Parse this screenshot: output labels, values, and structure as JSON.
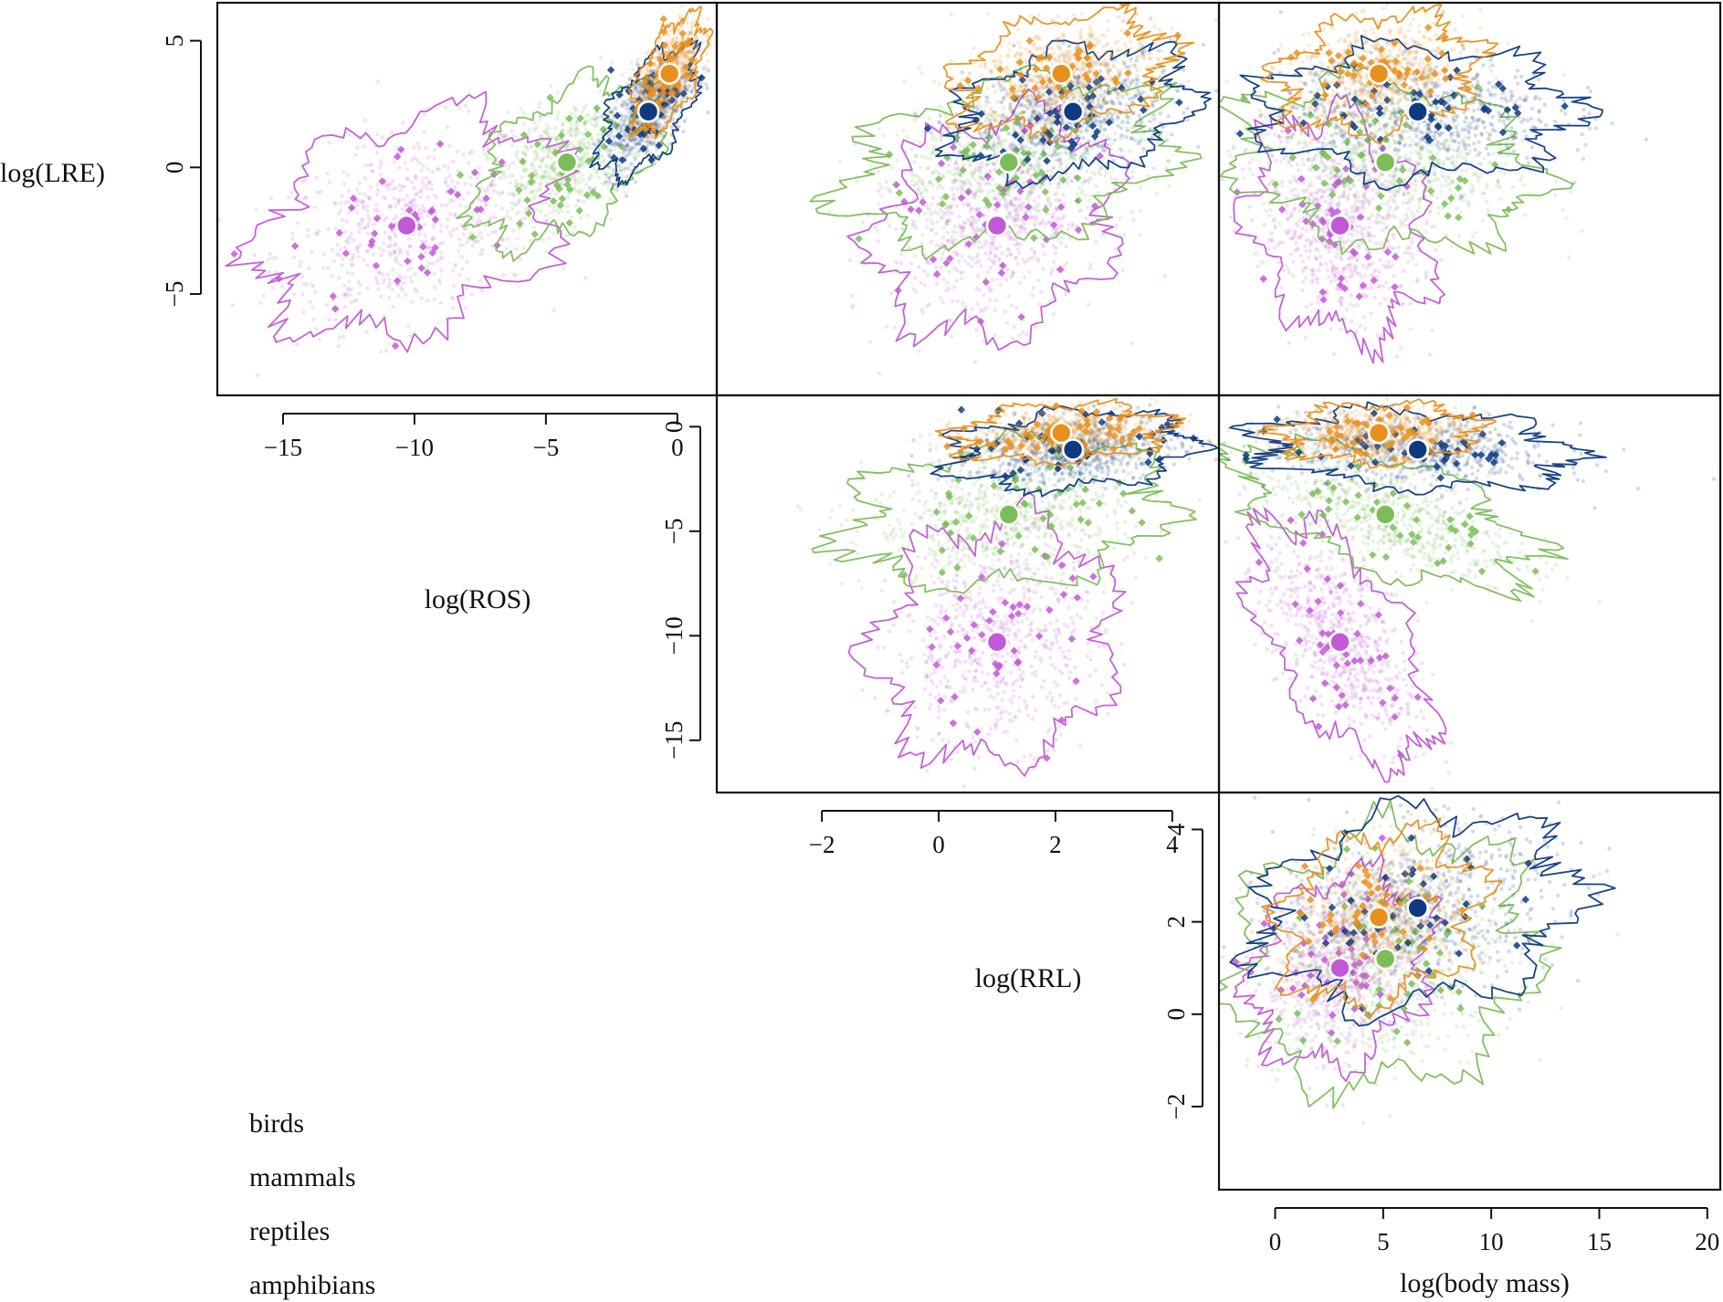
{
  "colors": {
    "birds": "#e8901e",
    "mammals": "#0d3a80",
    "reptiles": "#7cbd5a",
    "amphibians": "#c158d6"
  },
  "legend": [
    {
      "key": "birds",
      "label": "birds"
    },
    {
      "key": "mammals",
      "label": "mammals"
    },
    {
      "key": "reptiles",
      "label": "reptiles"
    },
    {
      "key": "amphibians",
      "label": "amphibians"
    }
  ],
  "axes": {
    "lre": {
      "title": "log(LRE)",
      "ticks": [
        -5,
        0,
        5
      ],
      "tick_labels": [
        "−5",
        "0",
        "5"
      ]
    },
    "ros": {
      "title": "log(ROS)",
      "ticks": [
        -15,
        -10,
        -5,
        0
      ],
      "tick_labels": [
        "−15",
        "−10",
        "−5",
        "0"
      ]
    },
    "rrl": {
      "title": "log(RRL)",
      "ticks": [
        -2,
        0,
        2,
        4
      ],
      "tick_labels": [
        "−2",
        "0",
        "2",
        "4"
      ]
    },
    "mass": {
      "title": "log(body mass)",
      "ticks": [
        0,
        5,
        10,
        15,
        20
      ],
      "tick_labels": [
        "0",
        "5",
        "10",
        "15",
        "20"
      ]
    }
  },
  "chart_data": {
    "type": "scatter",
    "layout": "pairs-matrix",
    "panels": [
      {
        "id": "p11",
        "x": "ros",
        "y": "lre",
        "xlim": [
          -17.5,
          1.5
        ],
        "ylim": [
          -9,
          6.5
        ]
      },
      {
        "id": "p12",
        "x": "rrl",
        "y": "lre",
        "xlim": [
          -3.8,
          4.8
        ],
        "ylim": [
          -9,
          6.5
        ]
      },
      {
        "id": "p13",
        "x": "mass",
        "y": "lre",
        "xlim": [
          -2.6,
          20.6
        ],
        "ylim": [
          -9,
          6.5
        ]
      },
      {
        "id": "p22",
        "x": "rrl",
        "y": "ros",
        "xlim": [
          -3.8,
          4.8
        ],
        "ylim": [
          -17.5,
          1.5
        ]
      },
      {
        "id": "p23",
        "x": "mass",
        "y": "ros",
        "xlim": [
          -2.6,
          20.6
        ],
        "ylim": [
          -17.5,
          1.5
        ]
      },
      {
        "id": "p33",
        "x": "mass",
        "y": "rrl",
        "xlim": [
          -2.6,
          20.6
        ],
        "ylim": [
          -3.8,
          4.8
        ]
      }
    ],
    "series": [
      {
        "name": "birds",
        "centroid": {
          "lre": 3.7,
          "ros": -0.3,
          "rrl": 2.1,
          "mass": 4.8
        },
        "spread": {
          "lre": 1.0,
          "ros": 0.6,
          "rrl": 0.8,
          "mass": 2.0
        },
        "corr": {
          "lre_ros": 0.6,
          "lre_rrl": 0.3,
          "lre_mass": 0.2,
          "ros_rrl": 0.2,
          "ros_mass": 0.1,
          "rrl_mass": 0.2
        }
      },
      {
        "name": "mammals",
        "centroid": {
          "lre": 2.2,
          "ros": -1.1,
          "rrl": 2.3,
          "mass": 6.6
        },
        "spread": {
          "lre": 1.1,
          "ros": 0.8,
          "rrl": 0.9,
          "mass": 3.2
        },
        "corr": {
          "lre_ros": 0.6,
          "lre_rrl": 0.3,
          "lre_mass": 0.0,
          "ros_rrl": 0.2,
          "ros_mass": -0.2,
          "rrl_mass": 0.2
        }
      },
      {
        "name": "reptiles",
        "centroid": {
          "lre": 0.2,
          "ros": -4.2,
          "rrl": 1.2,
          "mass": 5.1
        },
        "spread": {
          "lre": 1.4,
          "ros": 1.5,
          "rrl": 1.2,
          "mass": 3.0
        },
        "corr": {
          "lre_ros": 0.5,
          "lre_rrl": 0.3,
          "lre_mass": -0.2,
          "ros_rrl": 0.2,
          "ros_mass": -0.6,
          "rrl_mass": 0.1
        }
      },
      {
        "name": "amphibians",
        "centroid": {
          "lre": -2.3,
          "ros": -10.3,
          "rrl": 1.0,
          "mass": 3.0
        },
        "spread": {
          "lre": 1.9,
          "ros": 2.5,
          "rrl": 0.9,
          "mass": 1.8
        },
        "corr": {
          "lre_ros": 0.3,
          "lre_rrl": 0.2,
          "lre_mass": -0.2,
          "ros_rrl": 0.1,
          "ros_mass": -0.6,
          "rrl_mass": 0.2
        }
      }
    ]
  }
}
